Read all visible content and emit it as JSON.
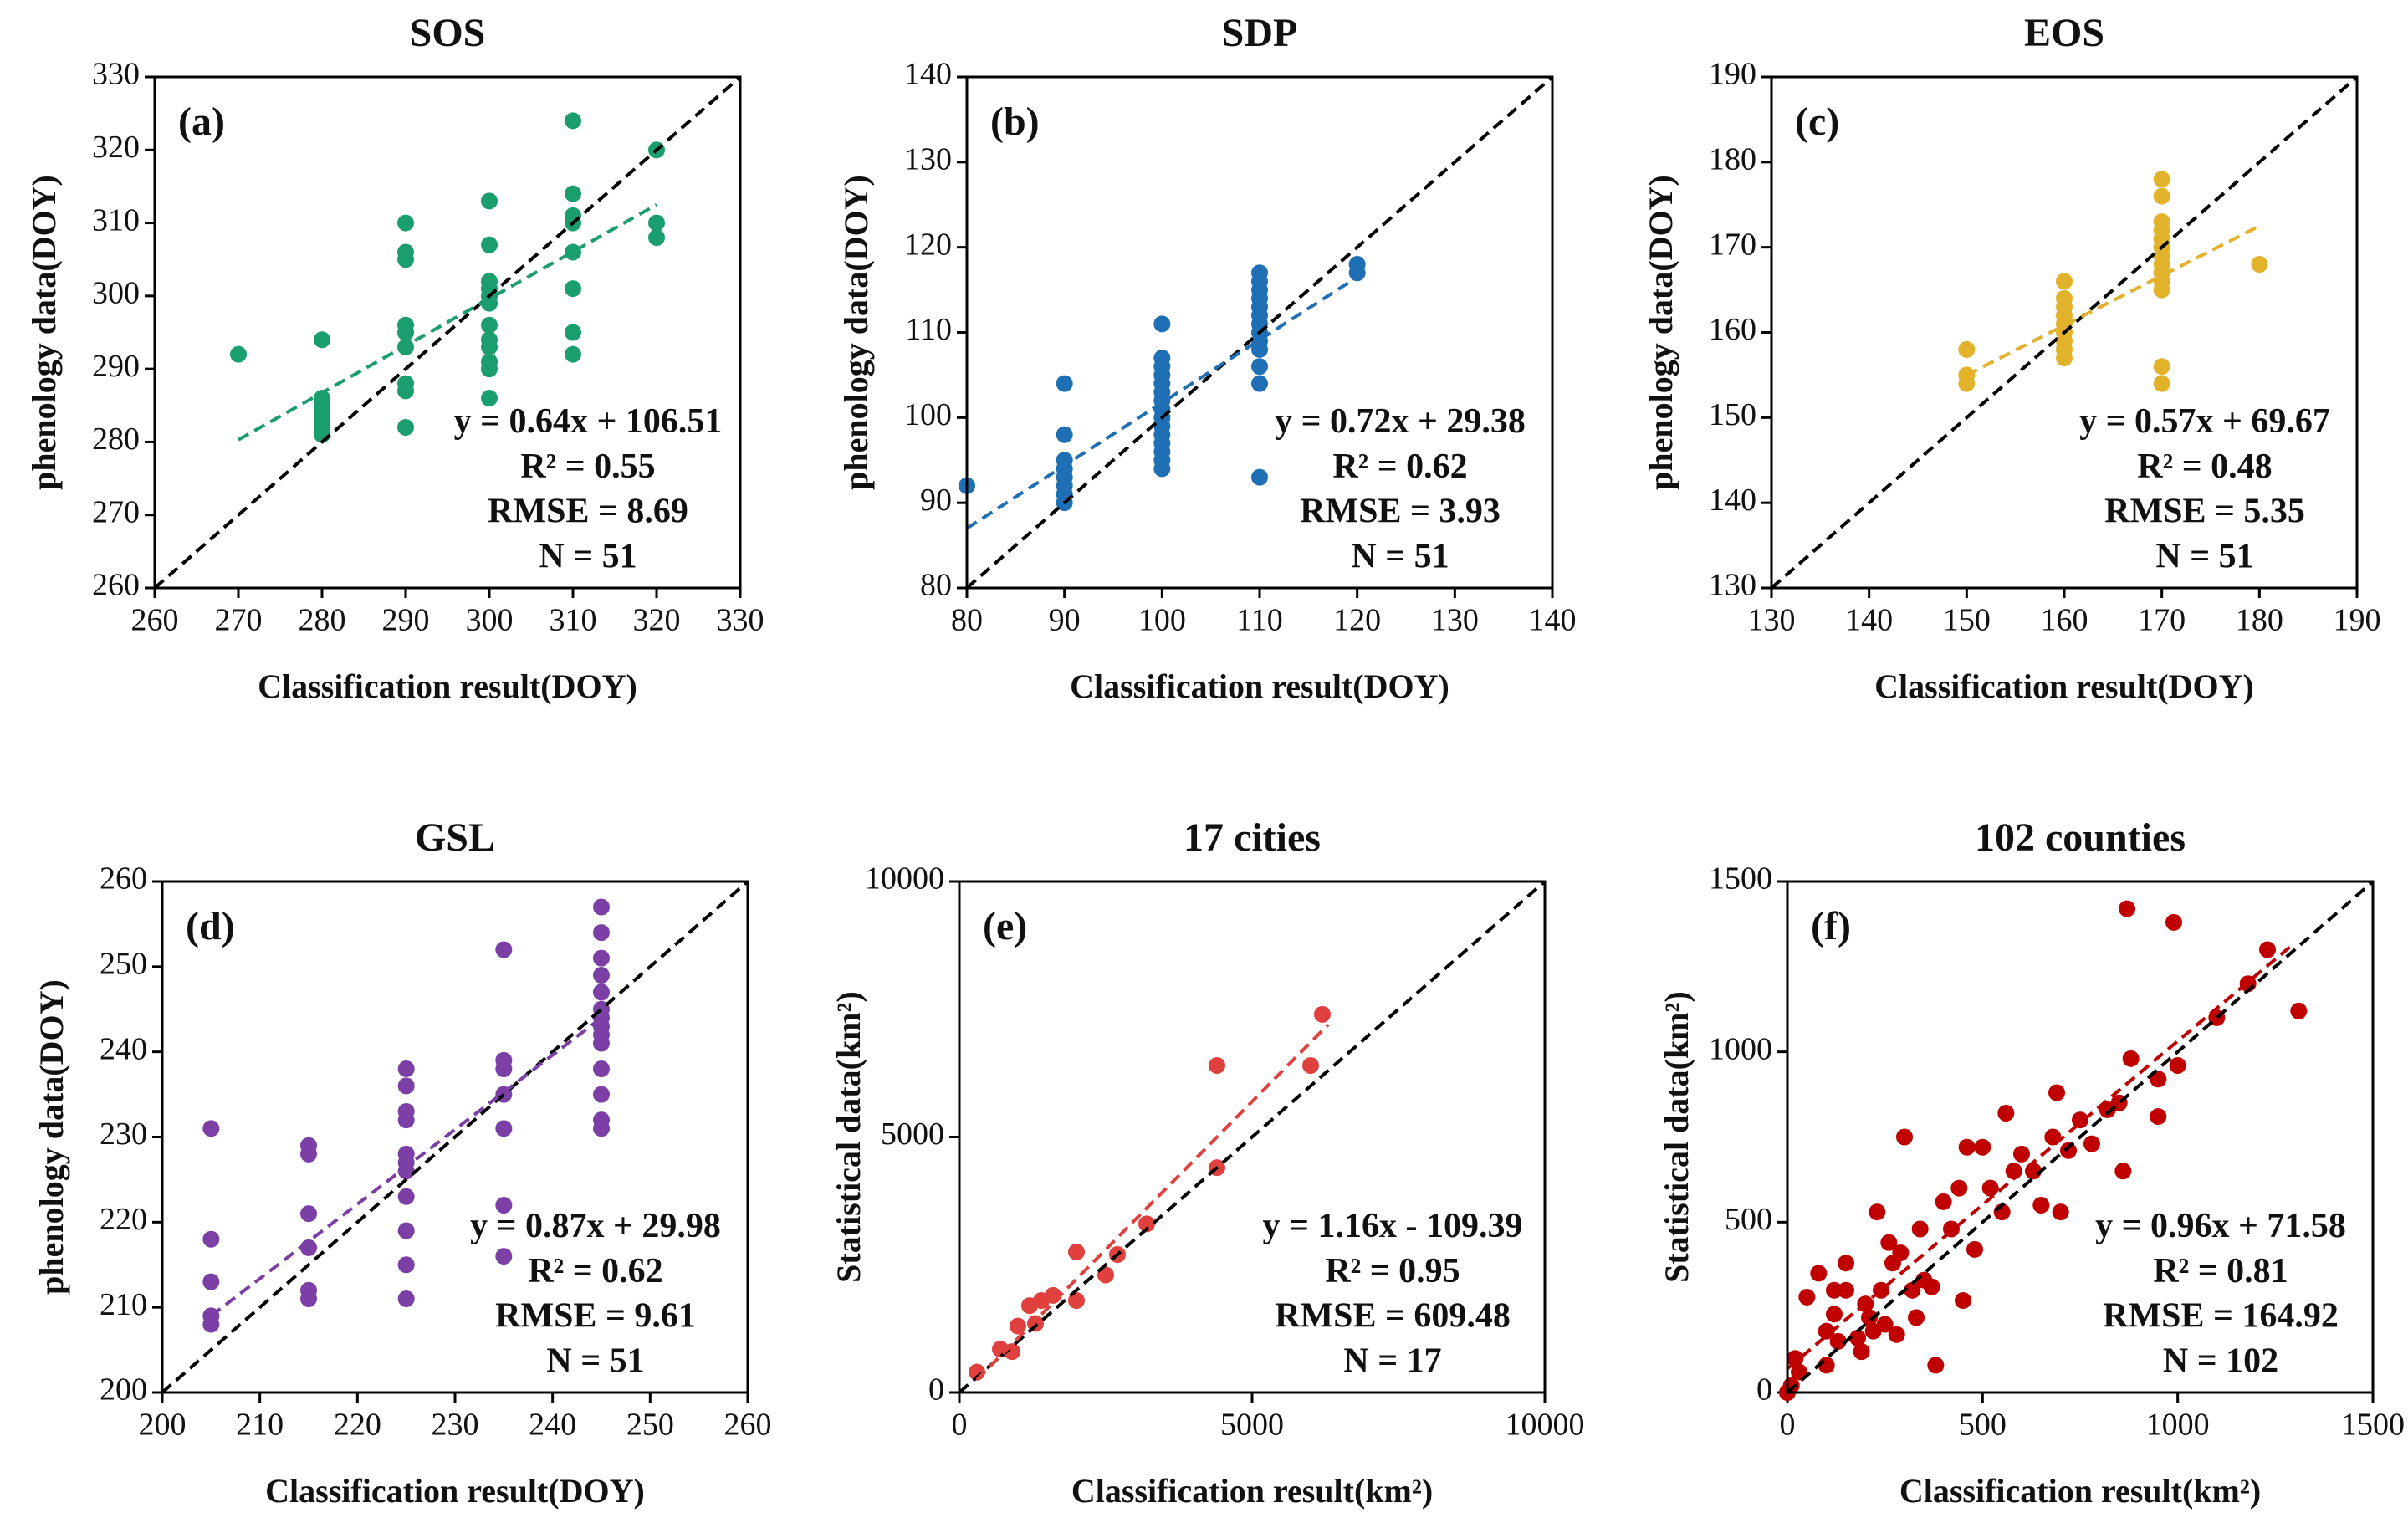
{
  "chart_data": [
    {
      "type": "scatter",
      "title": "SOS",
      "panel": "(a)",
      "x_label": "Classification result(DOY)",
      "y_label": "phenology  data(DOY)",
      "color": "#1a9e6e",
      "xlim": [
        260,
        330
      ],
      "ylim": [
        260,
        330
      ],
      "xticks": [
        260,
        270,
        280,
        290,
        300,
        310,
        320,
        330
      ],
      "yticks": [
        260,
        270,
        280,
        290,
        300,
        310,
        320,
        330
      ],
      "x": [
        270,
        280,
        280,
        280,
        280,
        280,
        280,
        280,
        290,
        290,
        290,
        290,
        290,
        290,
        290,
        290,
        290,
        300,
        300,
        300,
        300,
        300,
        300,
        300,
        300,
        300,
        300,
        300,
        300,
        310,
        310,
        310,
        310,
        310,
        310,
        310,
        310,
        320,
        320,
        320
      ],
      "y": [
        292,
        294,
        286,
        285,
        284,
        283,
        282,
        281,
        310,
        306,
        305,
        296,
        295,
        293,
        288,
        287,
        282,
        313,
        307,
        302,
        301,
        300,
        299,
        296,
        294,
        293,
        291,
        290,
        286,
        324,
        314,
        311,
        310,
        306,
        301,
        295,
        292,
        320,
        310,
        308
      ],
      "fit_line": {
        "x": [
          270,
          320
        ],
        "y": [
          280.3,
          312.5
        ]
      },
      "annotations": [
        "y = 0.64x + 106.51",
        "R² = 0.55",
        "RMSE = 8.69",
        "N = 51"
      ]
    },
    {
      "type": "scatter",
      "title": "SDP",
      "panel": "(b)",
      "x_label": "Classification result(DOY)",
      "y_label": "phenology  data(DOY)",
      "color": "#1f6fb5",
      "xlim": [
        80,
        140
      ],
      "ylim": [
        80,
        140
      ],
      "xticks": [
        80,
        90,
        100,
        110,
        120,
        130,
        140
      ],
      "yticks": [
        80,
        90,
        100,
        110,
        120,
        130,
        140
      ],
      "x": [
        80,
        90,
        90,
        90,
        90,
        90,
        90,
        90,
        90,
        100,
        100,
        100,
        100,
        100,
        100,
        100,
        100,
        100,
        100,
        100,
        100,
        100,
        100,
        100,
        110,
        110,
        110,
        110,
        110,
        110,
        110,
        110,
        110,
        110,
        110,
        110,
        110,
        120,
        120
      ],
      "y": [
        92,
        104,
        98,
        95,
        94,
        93,
        92,
        91,
        90,
        111,
        107,
        106,
        105,
        104,
        103,
        102,
        101,
        100,
        99,
        98,
        97,
        96,
        95,
        94,
        117,
        116,
        115,
        114,
        113,
        112,
        111,
        110,
        109,
        108,
        106,
        104,
        93,
        118,
        117
      ],
      "fit_line": {
        "x": [
          80,
          120
        ],
        "y": [
          87,
          116.5
        ]
      },
      "annotations": [
        "y = 0.72x + 29.38",
        "R² = 0.62",
        "RMSE = 3.93",
        "N = 51"
      ]
    },
    {
      "type": "scatter",
      "title": "EOS",
      "panel": "(c)",
      "x_label": "Classification result(DOY)",
      "y_label": "phenology  data(DOY)",
      "color": "#e2b22b",
      "xlim": [
        130,
        190
      ],
      "ylim": [
        130,
        190
      ],
      "xticks": [
        130,
        140,
        150,
        160,
        170,
        180,
        190
      ],
      "yticks": [
        130,
        140,
        150,
        160,
        170,
        180,
        190
      ],
      "x": [
        150,
        150,
        150,
        160,
        160,
        160,
        160,
        160,
        160,
        160,
        160,
        160,
        170,
        170,
        170,
        170,
        170,
        170,
        170,
        170,
        170,
        170,
        170,
        170,
        170,
        180
      ],
      "y": [
        158,
        155,
        154,
        166,
        164,
        163,
        162,
        161,
        160,
        159,
        158,
        157,
        178,
        176,
        173,
        172,
        171,
        170,
        169,
        168,
        167,
        166,
        165,
        156,
        154,
        168
      ],
      "fit_line": {
        "x": [
          150,
          180
        ],
        "y": [
          155,
          172.5
        ]
      },
      "annotations": [
        "y = 0.57x + 69.67",
        "R² = 0.48",
        "RMSE = 5.35",
        "N = 51"
      ]
    },
    {
      "type": "scatter",
      "title": "GSL",
      "panel": "(d)",
      "x_label": "Classification result(DOY)",
      "y_label": "phenology  data(DOY)",
      "color": "#7b3fa6",
      "xlim": [
        200,
        260
      ],
      "ylim": [
        200,
        260
      ],
      "xticks": [
        200,
        210,
        220,
        230,
        240,
        250,
        260
      ],
      "yticks": [
        200,
        210,
        220,
        230,
        240,
        250,
        260
      ],
      "x": [
        205,
        205,
        205,
        205,
        205,
        215,
        215,
        215,
        215,
        215,
        215,
        225,
        225,
        225,
        225,
        225,
        225,
        225,
        225,
        225,
        225,
        225,
        235,
        235,
        235,
        235,
        235,
        235,
        235,
        245,
        245,
        245,
        245,
        245,
        245,
        245,
        245,
        245,
        245,
        245,
        245,
        245,
        245
      ],
      "y": [
        231,
        218,
        213,
        209,
        208,
        229,
        228,
        221,
        217,
        212,
        211,
        238,
        236,
        233,
        232,
        228,
        227,
        226,
        223,
        219,
        215,
        211,
        252,
        239,
        238,
        235,
        231,
        222,
        216,
        257,
        254,
        251,
        249,
        247,
        245,
        244,
        243,
        242,
        241,
        238,
        235,
        232,
        231
      ],
      "fit_line": {
        "x": [
          205,
          245
        ],
        "y": [
          209,
          244
        ]
      },
      "annotations": [
        "y = 0.87x + 29.98",
        "R² = 0.62",
        "RMSE = 9.61",
        "N = 51"
      ]
    },
    {
      "type": "scatter",
      "title": "17 cities",
      "panel": "(e)",
      "x_label": "Classification result(km²)",
      "y_label": "Statistical data(km²)",
      "color": "#e0413f",
      "xlim": [
        0,
        10000
      ],
      "ylim": [
        0,
        10000
      ],
      "xticks": [
        0,
        5000,
        10000
      ],
      "yticks": [
        0,
        5000,
        10000
      ],
      "x": [
        300,
        700,
        900,
        1000,
        1300,
        1400,
        1600,
        2000,
        2000,
        2500,
        2700,
        3200,
        4400,
        4400,
        6000,
        6200,
        1200
      ],
      "y": [
        400,
        850,
        800,
        1300,
        1350,
        1800,
        1900,
        2750,
        1800,
        2300,
        2700,
        3300,
        6400,
        4400,
        6400,
        7400,
        1700
      ],
      "fit_line": {
        "x": [
          300,
          6300
        ],
        "y": [
          250,
          7200
        ]
      },
      "annotations": [
        "y = 1.16x - 109.39",
        "R² = 0.95",
        "RMSE = 609.48",
        "N = 17"
      ]
    },
    {
      "type": "scatter",
      "title": "102 counties",
      "panel": "(f)",
      "x_label": "Classification result(km²)",
      "y_label": "Statistical data(km²)",
      "color": "#c00000",
      "xlim": [
        0,
        1500
      ],
      "ylim": [
        0,
        1500
      ],
      "xticks": [
        0,
        500,
        1000,
        1500
      ],
      "yticks": [
        0,
        500,
        1000,
        1500
      ],
      "x": [
        0,
        10,
        20,
        30,
        50,
        80,
        100,
        100,
        120,
        120,
        130,
        150,
        150,
        180,
        190,
        200,
        210,
        220,
        230,
        240,
        250,
        260,
        270,
        280,
        290,
        300,
        320,
        330,
        340,
        350,
        370,
        380,
        400,
        420,
        440,
        450,
        460,
        480,
        500,
        520,
        550,
        560,
        580,
        600,
        630,
        650,
        680,
        690,
        700,
        720,
        750,
        780,
        820,
        850,
        860,
        870,
        880,
        950,
        950,
        990,
        1000,
        1100,
        1180,
        1230,
        1310
      ],
      "y": [
        0,
        20,
        100,
        60,
        280,
        350,
        180,
        80,
        300,
        230,
        150,
        380,
        300,
        160,
        120,
        260,
        220,
        180,
        530,
        300,
        200,
        440,
        380,
        170,
        410,
        750,
        300,
        220,
        480,
        330,
        310,
        80,
        560,
        480,
        600,
        270,
        720,
        420,
        720,
        600,
        530,
        820,
        650,
        700,
        650,
        550,
        750,
        880,
        530,
        710,
        800,
        730,
        830,
        850,
        650,
        1420,
        980,
        920,
        810,
        1380,
        960,
        1100,
        1200,
        1300,
        1120
      ],
      "fit_line": {
        "x": [
          0,
          1300
        ],
        "y": [
          70,
          1320
        ]
      },
      "annotations": [
        "y = 0.96x + 71.58",
        "R² = 0.81",
        "RMSE = 164.92",
        "N = 102"
      ]
    }
  ]
}
